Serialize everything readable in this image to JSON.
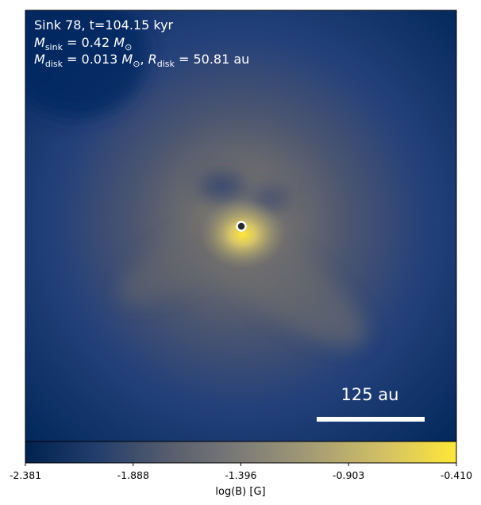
{
  "chart_data": {
    "type": "image",
    "annotations": [
      [
        "Sink 78, t=104.15 kyr"
      ],
      [
        "M",
        "sink",
        " = 0.42 ",
        "M",
        "⊙"
      ],
      [
        "M",
        "disk",
        " = 0.013 ",
        "M",
        "⊙",
        ", ",
        "R",
        "disk",
        " = 50.81 au"
      ]
    ],
    "scale_bar_label": "125 au",
    "colorbar": {
      "label": "log(B) [G]",
      "clim": [
        -2.381,
        -0.41
      ],
      "ticks": [
        -2.381,
        -1.888,
        -1.396,
        -0.903,
        {
          "value": -0.41,
          "label": "-0.410"
        }
      ],
      "colormap": [
        "#00224e",
        "#233e6c",
        "#575d6d",
        "#7c7b78",
        "#a59c74",
        "#d3c164",
        "#fee838"
      ]
    }
  }
}
